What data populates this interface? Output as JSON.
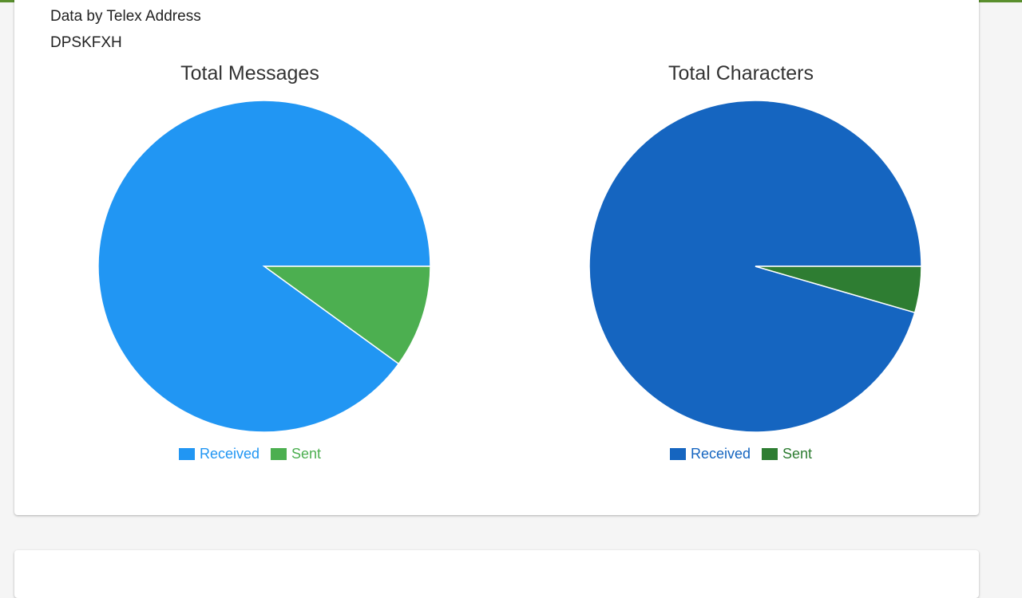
{
  "header": {
    "section_title": "Data by Telex Address",
    "address": "DPSKFXH"
  },
  "chart_data": [
    {
      "type": "pie",
      "title": "Total Messages",
      "categories": [
        "Received",
        "Sent"
      ],
      "values": [
        90,
        10
      ],
      "colors": [
        "#2196f3",
        "#4caf50"
      ]
    },
    {
      "type": "pie",
      "title": "Total Characters",
      "categories": [
        "Received",
        "Sent"
      ],
      "values": [
        95.5,
        4.5
      ],
      "colors": [
        "#1565c0",
        "#2e7d32"
      ]
    }
  ]
}
